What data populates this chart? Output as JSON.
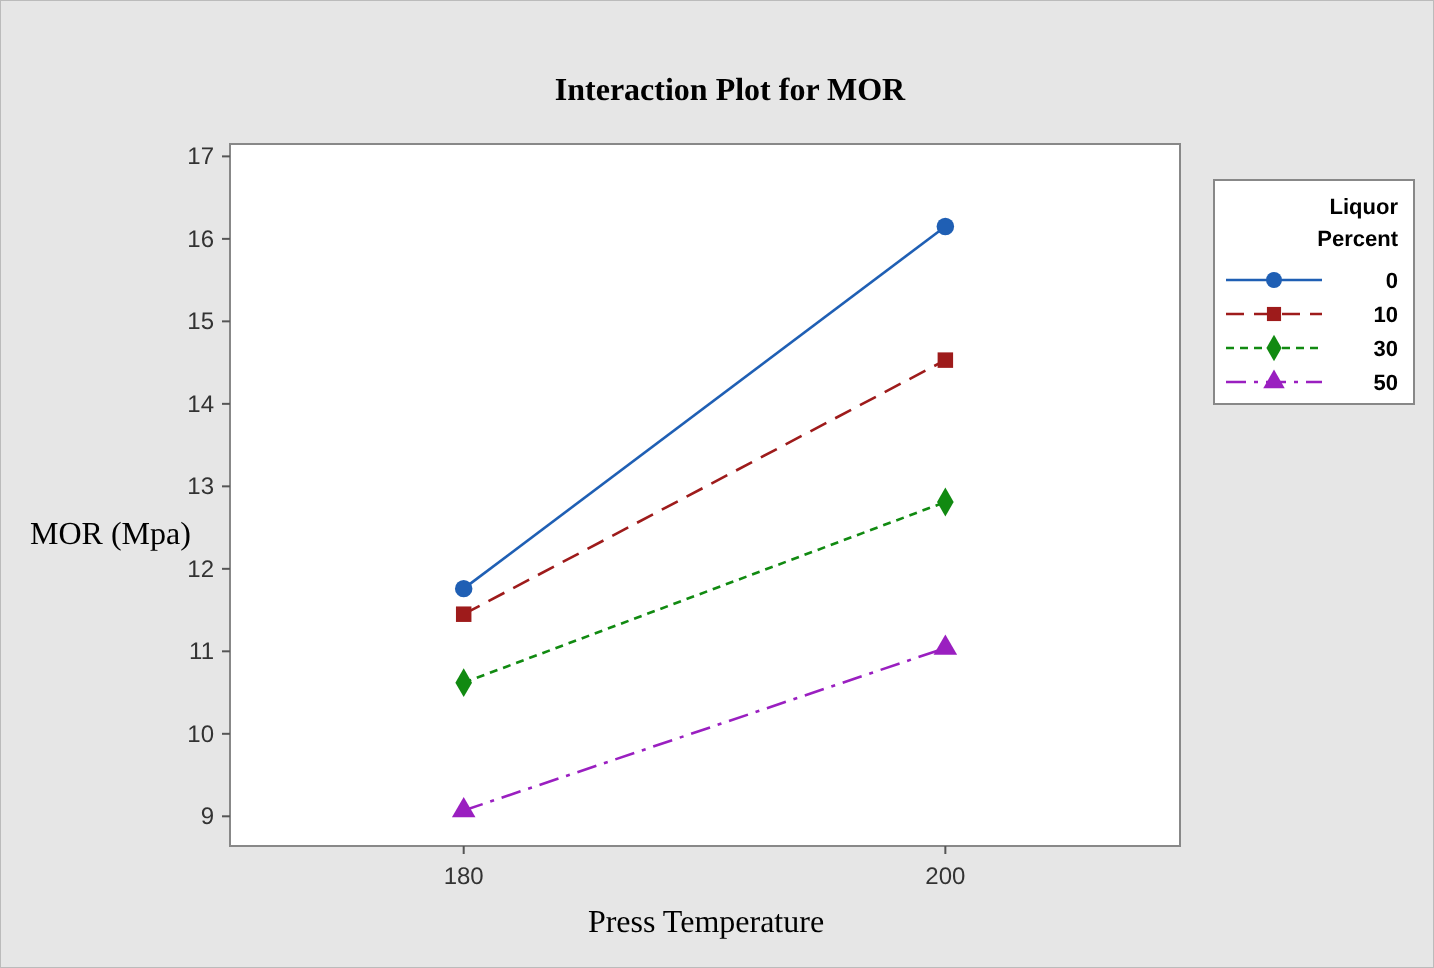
{
  "chart_data": {
    "type": "line",
    "title": "Interaction Plot for MOR",
    "xlabel": "Press Temperature",
    "ylabel": "MOR (Mpa)",
    "legend_title": "Liquor Percent",
    "categories": [
      "180",
      "200"
    ],
    "ylim": [
      8.64,
      17.15
    ],
    "yticks": [
      9,
      10,
      11,
      12,
      13,
      14,
      15,
      16,
      17
    ],
    "grid": false,
    "legend": "right",
    "series": [
      {
        "name": "0",
        "color": "#1f5fb4",
        "values": [
          11.76,
          16.15
        ],
        "marker": "circle",
        "line_style": "solid"
      },
      {
        "name": "10",
        "color": "#9e1b1b",
        "values": [
          11.45,
          14.53
        ],
        "marker": "square",
        "line_style": "dashed"
      },
      {
        "name": "30",
        "color": "#118a11",
        "values": [
          10.62,
          12.81
        ],
        "marker": "diamond",
        "line_style": "dotted"
      },
      {
        "name": "50",
        "color": "#9a1fc0",
        "values": [
          9.07,
          11.04
        ],
        "marker": "triangle",
        "line_style": "dashdot"
      }
    ]
  }
}
